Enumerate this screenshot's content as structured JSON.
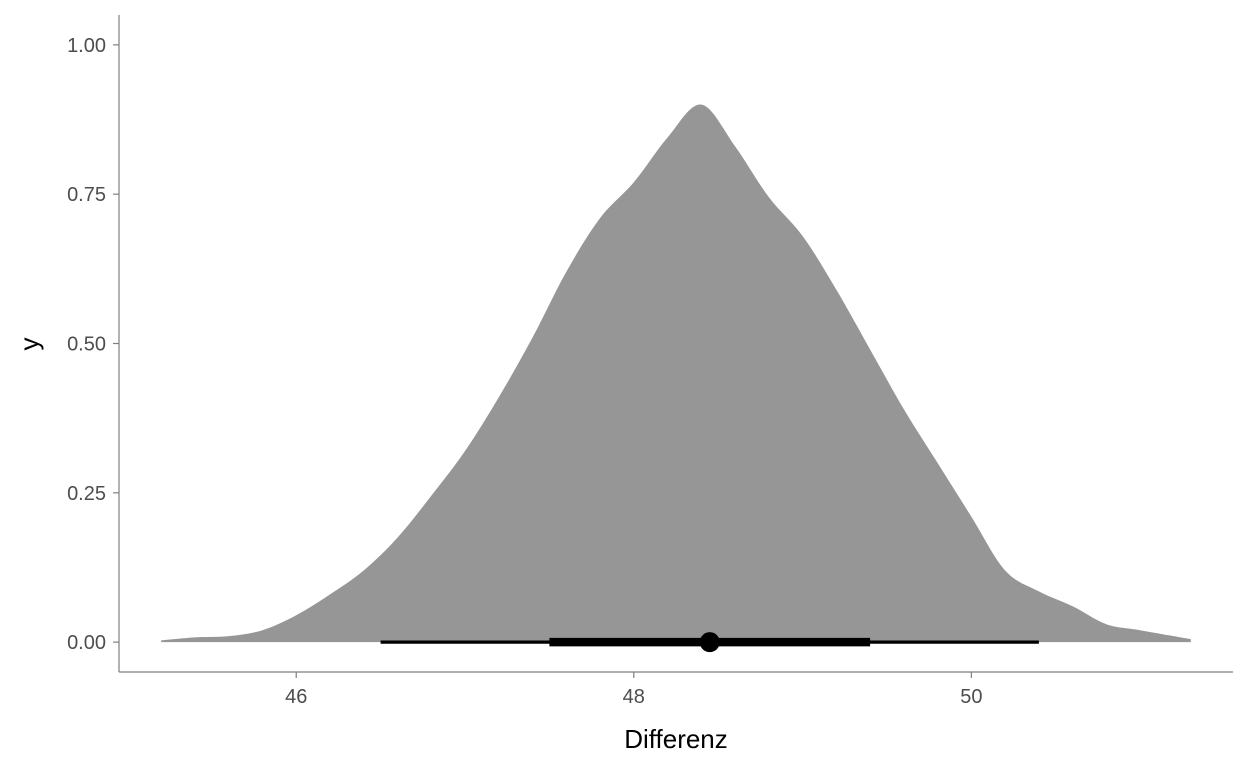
{
  "chart_data": {
    "type": "area",
    "title": "",
    "xlabel": "Differenz",
    "ylabel": "y",
    "xlim": [
      44.95,
      51.55
    ],
    "ylim": [
      -0.05,
      1.05
    ],
    "x_ticks": [
      46,
      48,
      50
    ],
    "x_tick_labels": [
      "46",
      "48",
      "50"
    ],
    "y_ticks": [
      0.0,
      0.25,
      0.5,
      0.75,
      1.0
    ],
    "y_tick_labels": [
      "0.00",
      "0.25",
      "0.50",
      "0.75",
      "1.00"
    ],
    "grid": false,
    "legend": "none",
    "density": {
      "fill_color": "#969696",
      "x": [
        45.2,
        45.4,
        45.6,
        45.8,
        46.0,
        46.2,
        46.4,
        46.6,
        46.8,
        47.0,
        47.2,
        47.4,
        47.6,
        47.8,
        48.0,
        48.2,
        48.4,
        48.6,
        48.8,
        49.0,
        49.2,
        49.4,
        49.6,
        49.8,
        50.0,
        50.2,
        50.4,
        50.6,
        50.8,
        51.0,
        51.3
      ],
      "y": [
        0.003,
        0.008,
        0.01,
        0.02,
        0.045,
        0.08,
        0.12,
        0.175,
        0.245,
        0.32,
        0.41,
        0.51,
        0.62,
        0.71,
        0.77,
        0.845,
        0.9,
        0.83,
        0.745,
        0.68,
        0.59,
        0.49,
        0.39,
        0.3,
        0.21,
        0.12,
        0.085,
        0.06,
        0.03,
        0.02,
        0.005
      ]
    },
    "point_interval": {
      "point": 48.45,
      "interval_thick": [
        47.5,
        49.4
      ],
      "interval_thin": [
        46.5,
        50.4
      ],
      "color": "#000000"
    }
  }
}
